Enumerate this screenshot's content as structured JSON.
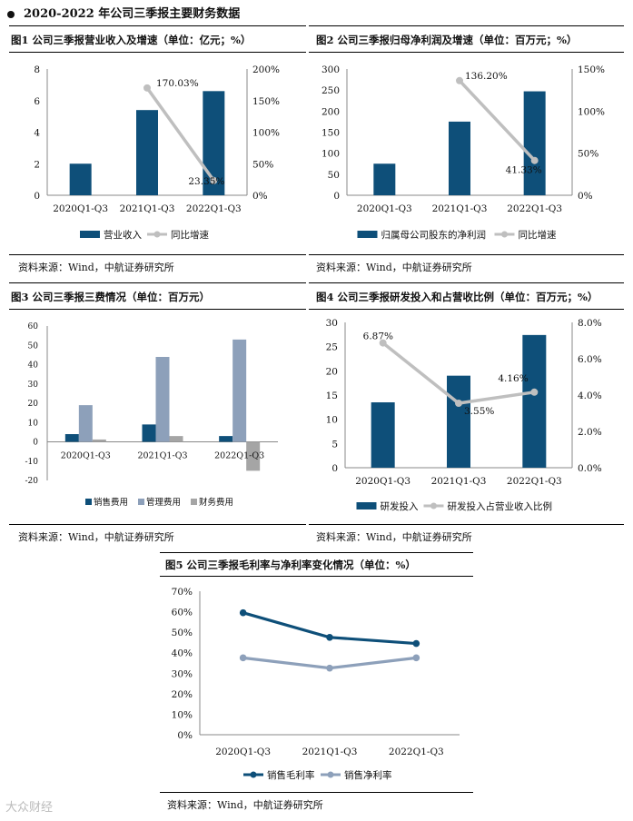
{
  "page": {
    "section_title": "2020-2022 年公司三季报主要财务数据",
    "watermark": "大众财经",
    "colors": {
      "dark_blue": "#0e4f79",
      "steel_blue": "#8da0ba",
      "gray": "#a5a5a5",
      "light_gray": "#bfbfbf"
    }
  },
  "figures": {
    "fig1": {
      "title": "图1  公司三季报营业收入及增速（单位：亿元；%）",
      "source": "资料来源：Wind，中航证券研究所"
    },
    "fig2": {
      "title": "图2  公司三季报归母净利润及增速（单位：百万元；%）",
      "source": "资料来源：Wind，中航证券研究所"
    },
    "fig3": {
      "title": "图3  公司三季报三费情况（单位：百万元）",
      "source": "资料来源：Wind，中航证券研究所"
    },
    "fig4": {
      "title": "图4  公司三季报研发投入和占营收比例（单位：百万元；%）",
      "source": "资料来源：Wind，中航证券研究所"
    },
    "fig5": {
      "title": "图5  公司三季报毛利率与净利率变化情况（单位：%）",
      "source": "资料来源：Wind，中航证券研究所"
    }
  },
  "chart_data": [
    {
      "id": "fig1",
      "type": "bar+line",
      "categories": [
        "2020Q1-Q3",
        "2021Q1-Q3",
        "2022Q1-Q3"
      ],
      "bar": {
        "name": "营业收入",
        "values": [
          2.0,
          5.4,
          6.6
        ],
        "ylim": [
          0,
          8
        ],
        "ticks": [
          "0",
          "2",
          "4",
          "6",
          "8"
        ]
      },
      "line": {
        "name": "同比增速",
        "values": [
          null,
          170.03,
          23.35
        ],
        "labels": [
          "",
          "170.03%",
          "23.35%"
        ],
        "ylim": [
          0,
          200
        ],
        "ticks": [
          "0%",
          "50%",
          "100%",
          "150%",
          "200%"
        ]
      }
    },
    {
      "id": "fig2",
      "type": "bar+line",
      "categories": [
        "2020Q1-Q3",
        "2021Q1-Q3",
        "2022Q1-Q3"
      ],
      "bar": {
        "name": "归属母公司股东的净利润",
        "values": [
          75,
          175,
          247
        ],
        "ylim": [
          0,
          300
        ],
        "ticks": [
          "0",
          "50",
          "100",
          "150",
          "200",
          "250",
          "300"
        ]
      },
      "line": {
        "name": "同比增速",
        "values": [
          null,
          136.2,
          41.33
        ],
        "labels": [
          "",
          "136.20%",
          "41.33%"
        ],
        "ylim": [
          0,
          150
        ],
        "ticks": [
          "0%",
          "50%",
          "100%",
          "150%"
        ]
      }
    },
    {
      "id": "fig3",
      "type": "bar",
      "categories": [
        "2020Q1-Q3",
        "2021Q1-Q3",
        "2022Q1-Q3"
      ],
      "ylim": [
        -20,
        60
      ],
      "ticks": [
        "-20",
        "-10",
        "0",
        "10",
        "20",
        "30",
        "40",
        "50",
        "60"
      ],
      "series": [
        {
          "name": "销售费用",
          "values": [
            4,
            9,
            3
          ]
        },
        {
          "name": "管理费用",
          "values": [
            19,
            44,
            53
          ]
        },
        {
          "name": "财务费用",
          "values": [
            1.2,
            3,
            -15
          ]
        }
      ]
    },
    {
      "id": "fig4",
      "type": "bar+line",
      "categories": [
        "2020Q1-Q3",
        "2021Q1-Q3",
        "2022Q1-Q3"
      ],
      "bar": {
        "name": "研发投入",
        "values": [
          13.5,
          19,
          27.4
        ],
        "ylim": [
          0,
          30
        ],
        "ticks": [
          "0",
          "5",
          "10",
          "15",
          "20",
          "25",
          "30"
        ]
      },
      "line": {
        "name": "研发投入占营业收入比例",
        "values": [
          6.87,
          3.55,
          4.16
        ],
        "labels": [
          "6.87%",
          "3.55%",
          "4.16%"
        ],
        "ylim": [
          0,
          8
        ],
        "ticks": [
          "0.0%",
          "2.0%",
          "4.0%",
          "6.0%",
          "8.0%"
        ]
      }
    },
    {
      "id": "fig5",
      "type": "line",
      "categories": [
        "2020Q1-Q3",
        "2021Q1-Q3",
        "2022Q1-Q3"
      ],
      "ylim": [
        0,
        70
      ],
      "ticks": [
        "0%",
        "10%",
        "20%",
        "30%",
        "40%",
        "50%",
        "60%",
        "70%"
      ],
      "series": [
        {
          "name": "销售毛利率",
          "values": [
            59.5,
            47.5,
            44.5
          ]
        },
        {
          "name": "销售净利率",
          "values": [
            37.5,
            32.5,
            37.5
          ]
        }
      ]
    }
  ]
}
